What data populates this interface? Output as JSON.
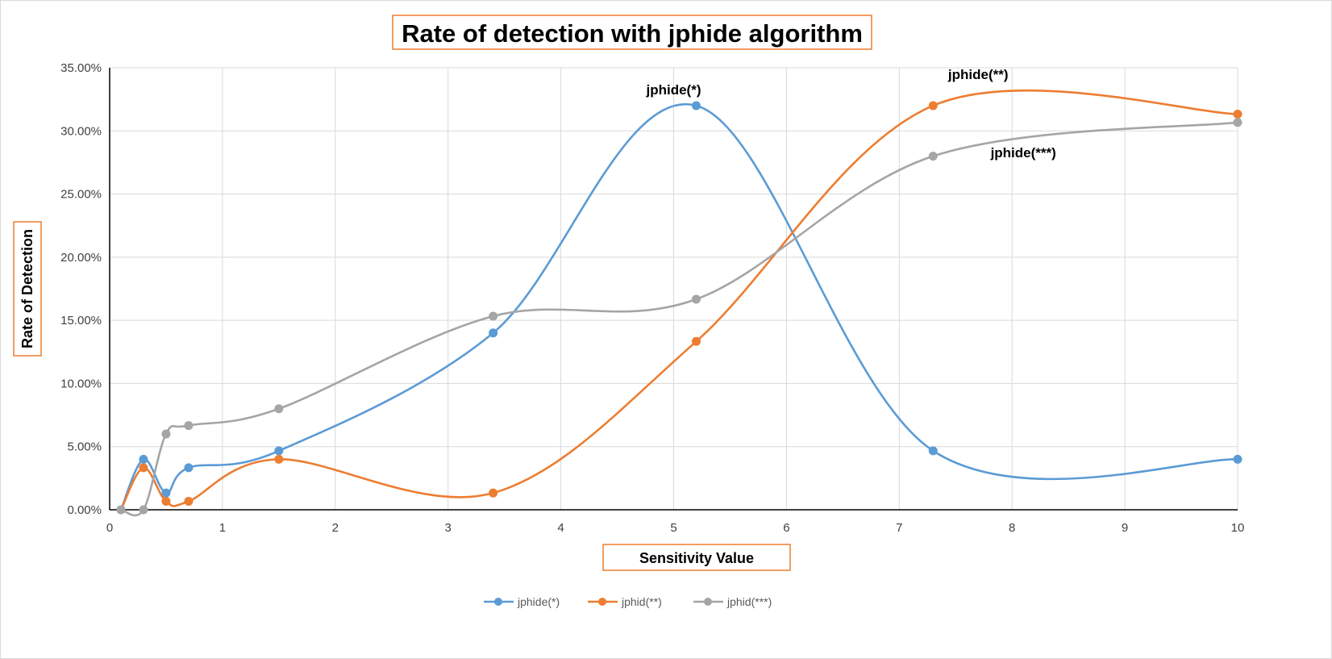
{
  "chart_data": {
    "type": "line",
    "smooth": true,
    "markers": "circle",
    "title": "Rate of detection with jphide algorithm",
    "xlabel": "Sensitivity Value",
    "ylabel": "Rate of Detection",
    "xlim": [
      0,
      10
    ],
    "ylim": [
      0,
      0.35
    ],
    "xticks": [
      "0",
      "1",
      "2",
      "3",
      "4",
      "5",
      "6",
      "7",
      "8",
      "9",
      "10"
    ],
    "yticks": [
      "0.00%",
      "5.00%",
      "10.00%",
      "15.00%",
      "20.00%",
      "25.00%",
      "30.00%",
      "35.00%"
    ],
    "grid": true,
    "legend_position": "bottom",
    "x": [
      0.1,
      0.3,
      0.5,
      0.7,
      1.5,
      3.4,
      5.2,
      7.3,
      10
    ],
    "series": [
      {
        "name": "jphide(*)",
        "color": "#5b9bd5",
        "values": [
          0,
          0.04,
          0.0133,
          0.0333,
          0.0467,
          0.14,
          0.32,
          0.0467,
          0.04
        ]
      },
      {
        "name": "jphid(**)",
        "color": "#ed7d31",
        "values": [
          0,
          0.0333,
          0.0067,
          0.0067,
          0.04,
          0.0133,
          0.1333,
          0.32,
          0.3133
        ]
      },
      {
        "name": "jphid(***)",
        "color": "#a5a5a5",
        "values": [
          0,
          0,
          0.06,
          0.0667,
          0.08,
          0.1533,
          0.1667,
          0.28,
          0.3067
        ]
      }
    ],
    "annotations": [
      {
        "text": "jphide(*)",
        "x": 5.0,
        "y": 0.329
      },
      {
        "text": "jphide(**)",
        "x": 7.7,
        "y": 0.341
      },
      {
        "text": "jphide(***)",
        "x": 8.1,
        "y": 0.279
      }
    ],
    "label_box_color": "#ed7d31"
  }
}
